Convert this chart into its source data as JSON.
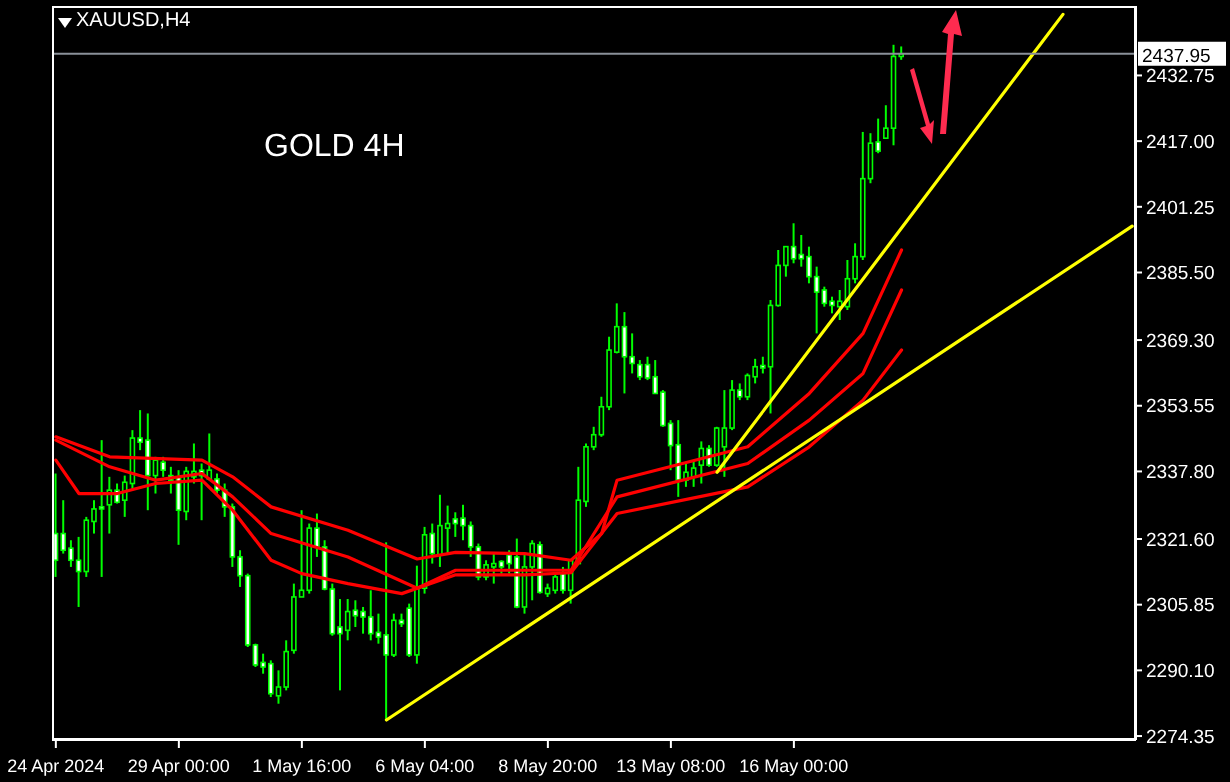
{
  "chart_data": {
    "type": "candlestick",
    "title": "XAUUSD,H4",
    "annotations": [
      "GOLD 4H"
    ],
    "categories": [
      "24 Apr 2024",
      null,
      null,
      null,
      null,
      null,
      null,
      null,
      null,
      null,
      null,
      null,
      null,
      null,
      null,
      null,
      "29 Apr 00:00",
      null,
      null,
      null,
      null,
      null,
      null,
      null,
      null,
      null,
      null,
      null,
      null,
      null,
      null,
      null,
      "1 May 16:00",
      null,
      null,
      null,
      null,
      null,
      null,
      null,
      null,
      null,
      null,
      null,
      null,
      null,
      null,
      null,
      "6 May 04:00",
      null,
      null,
      null,
      null,
      null,
      null,
      null,
      null,
      null,
      null,
      null,
      null,
      null,
      null,
      null,
      "8 May 20:00",
      null,
      null,
      null,
      null,
      null,
      null,
      null,
      null,
      null,
      null,
      null,
      null,
      null,
      null,
      null,
      "13 May 08:00",
      null,
      null,
      null,
      null,
      null,
      null,
      null,
      null,
      null,
      null,
      null,
      null,
      null,
      null,
      null,
      "16 May 00:00",
      null,
      null,
      null,
      null,
      null,
      null,
      null,
      null,
      null,
      null,
      null,
      null,
      null,
      null,
      null,
      null,
      null,
      null,
      null,
      null,
      null,
      null,
      null,
      null,
      null,
      null,
      null,
      null,
      null,
      null,
      null,
      null,
      null,
      null,
      null,
      null,
      null,
      null,
      null,
      null,
      null,
      null,
      null,
      null
    ],
    "ohlc": [
      [
        2322.9,
        2337.3,
        2312.5,
        2316.5
      ],
      [
        2322.9,
        2330.9,
        2318.1,
        2318.9
      ],
      [
        2319.4,
        2321.3,
        2314.9,
        2316.5
      ],
      [
        2316.5,
        2322.1,
        2305.3,
        2313.8
      ],
      [
        2313.8,
        2326.9,
        2312.5,
        2326.1
      ],
      [
        2325.8,
        2330.9,
        2322.9,
        2328.8
      ],
      [
        2329.3,
        2345.3,
        2312.5,
        2328.8
      ],
      [
        2329.8,
        2336.5,
        2322.9,
        2333.3
      ],
      [
        2333.3,
        2334.9,
        2330.1,
        2330.4
      ],
      [
        2330.9,
        2336.8,
        2326.9,
        2335.2
      ],
      [
        2334.9,
        2347.7,
        2333.3,
        2345.8
      ],
      [
        2345.8,
        2352.5,
        2342.9,
        2344.8
      ],
      [
        2345.3,
        2351.7,
        2328.5,
        2336.8
      ],
      [
        2336.8,
        2341.3,
        2332.5,
        2340.5
      ],
      [
        2340.0,
        2341.3,
        2336.5,
        2338.1
      ],
      [
        2336.8,
        2338.9,
        2332.5,
        2335.7
      ],
      [
        2336.5,
        2338.1,
        2320.2,
        2328.5
      ],
      [
        2328.2,
        2338.9,
        2326.1,
        2337.8
      ],
      [
        2336.5,
        2344.5,
        2334.9,
        2337.8
      ],
      [
        2338.1,
        2339.7,
        2326.1,
        2336.8
      ],
      [
        2336.0,
        2346.9,
        2335.7,
        2338.1
      ],
      [
        2336.0,
        2337.3,
        2332.5,
        2333.3
      ],
      [
        2333.3,
        2334.9,
        2326.9,
        2329.3
      ],
      [
        2329.3,
        2330.1,
        2314.9,
        2317.3
      ],
      [
        2317.3,
        2318.9,
        2310.1,
        2312.8
      ],
      [
        2312.8,
        2313.3,
        2295.7,
        2296.2
      ],
      [
        2296.2,
        2296.5,
        2290.9,
        2291.4
      ],
      [
        2292.0,
        2294.1,
        2289.3,
        2290.9
      ],
      [
        2291.7,
        2292.5,
        2283.7,
        2284.5
      ],
      [
        2284.0,
        2290.1,
        2282.1,
        2286.1
      ],
      [
        2286.1,
        2297.3,
        2285.3,
        2294.6
      ],
      [
        2294.9,
        2310.9,
        2294.1,
        2307.7
      ],
      [
        2307.7,
        2328.5,
        2307.7,
        2309.3
      ],
      [
        2309.3,
        2325.3,
        2308.5,
        2324.2
      ],
      [
        2324.2,
        2327.7,
        2317.3,
        2319.7
      ],
      [
        2319.7,
        2321.3,
        2309.3,
        2309.6
      ],
      [
        2309.6,
        2310.9,
        2298.4,
        2298.9
      ],
      [
        2300.5,
        2307.2,
        2285.3,
        2298.9
      ],
      [
        2299.7,
        2307.2,
        2297.3,
        2304.2
      ],
      [
        2304.5,
        2306.9,
        2300.5,
        2303.2
      ],
      [
        2304.2,
        2305.3,
        2298.9,
        2302.9
      ],
      [
        2302.9,
        2309.3,
        2297.3,
        2298.9
      ],
      [
        2299.2,
        2303.7,
        2296.5,
        2298.1
      ],
      [
        2298.6,
        2320.8,
        2278.1,
        2293.8
      ],
      [
        2293.8,
        2303.7,
        2293.3,
        2302.1
      ],
      [
        2302.1,
        2303.7,
        2300.5,
        2301.3
      ],
      [
        2305.0,
        2306.1,
        2293.3,
        2293.8
      ],
      [
        2293.8,
        2315.2,
        2291.7,
        2309.8
      ],
      [
        2309.8,
        2324.5,
        2308.5,
        2322.6
      ],
      [
        2322.9,
        2325.3,
        2315.7,
        2318.1
      ],
      [
        2317.8,
        2332.2,
        2314.9,
        2324.8
      ],
      [
        2324.2,
        2329.6,
        2317.8,
        2325.3
      ],
      [
        2326.4,
        2328.0,
        2322.1,
        2325.3
      ],
      [
        2326.6,
        2329.8,
        2321.3,
        2324.8
      ],
      [
        2324.8,
        2325.8,
        2317.3,
        2319.7
      ],
      [
        2319.7,
        2320.5,
        2311.7,
        2312.5
      ],
      [
        2312.5,
        2316.5,
        2311.7,
        2315.4
      ],
      [
        2314.9,
        2318.1,
        2310.9,
        2315.7
      ],
      [
        2316.2,
        2316.5,
        2313.3,
        2314.9
      ],
      [
        2317.8,
        2318.9,
        2313.3,
        2315.7
      ],
      [
        2317.3,
        2321.7,
        2305.0,
        2305.3
      ],
      [
        2305.3,
        2318.1,
        2303.7,
        2314.9
      ],
      [
        2314.9,
        2321.3,
        2306.9,
        2320.5
      ],
      [
        2320.2,
        2321.0,
        2308.5,
        2308.8
      ],
      [
        2308.5,
        2310.9,
        2307.7,
        2309.8
      ],
      [
        2309.3,
        2313.3,
        2308.5,
        2312.5
      ],
      [
        2313.3,
        2314.9,
        2308.5,
        2309.3
      ],
      [
        2309.3,
        2316.8,
        2306.1,
        2316.5
      ],
      [
        2315.7,
        2338.9,
        2315.7,
        2330.9
      ],
      [
        2330.6,
        2344.5,
        2329.3,
        2343.7
      ],
      [
        2343.7,
        2348.5,
        2342.9,
        2346.6
      ],
      [
        2346.6,
        2355.7,
        2346.1,
        2353.3
      ],
      [
        2353.3,
        2370.1,
        2352.5,
        2366.9
      ],
      [
        2366.4,
        2378.1,
        2366.1,
        2372.5
      ],
      [
        2372.5,
        2376.0,
        2356.5,
        2365.3
      ],
      [
        2365.3,
        2370.9,
        2361.3,
        2363.7
      ],
      [
        2363.4,
        2364.5,
        2359.7,
        2360.5
      ],
      [
        2363.4,
        2365.3,
        2359.7,
        2360.2
      ],
      [
        2360.5,
        2364.5,
        2356.5,
        2356.5
      ],
      [
        2356.8,
        2357.3,
        2348.5,
        2348.8
      ],
      [
        2349.3,
        2350.1,
        2338.1,
        2344.0
      ],
      [
        2344.2,
        2350.1,
        2331.7,
        2335.7
      ],
      [
        2335.7,
        2339.7,
        2334.1,
        2337.6
      ],
      [
        2336.5,
        2340.5,
        2334.1,
        2338.6
      ],
      [
        2339.3,
        2345.0,
        2334.9,
        2343.3
      ],
      [
        2343.3,
        2344.1,
        2338.9,
        2339.3
      ],
      [
        2339.3,
        2348.5,
        2338.9,
        2348.2
      ],
      [
        2343.7,
        2357.3,
        2336.5,
        2348.2
      ],
      [
        2348.2,
        2359.7,
        2347.7,
        2357.3
      ],
      [
        2357.3,
        2358.9,
        2354.9,
        2355.7
      ],
      [
        2355.7,
        2361.3,
        2354.9,
        2360.8
      ],
      [
        2360.5,
        2364.8,
        2358.9,
        2362.9
      ],
      [
        2363.2,
        2365.3,
        2361.3,
        2362.6
      ],
      [
        2362.9,
        2378.9,
        2351.7,
        2377.6
      ],
      [
        2377.6,
        2390.9,
        2377.3,
        2387.2
      ],
      [
        2387.2,
        2391.7,
        2384.5,
        2391.7
      ],
      [
        2391.7,
        2397.3,
        2387.7,
        2388.8
      ],
      [
        2389.8,
        2394.5,
        2386.9,
        2388.8
      ],
      [
        2389.3,
        2391.7,
        2382.9,
        2384.5
      ],
      [
        2384.5,
        2386.9,
        2370.9,
        2380.8
      ],
      [
        2381.3,
        2382.1,
        2377.3,
        2378.1
      ],
      [
        2378.6,
        2379.7,
        2375.7,
        2377.6
      ],
      [
        2377.3,
        2381.3,
        2374.1,
        2378.6
      ],
      [
        2377.3,
        2388.5,
        2376.5,
        2384.0
      ],
      [
        2384.0,
        2392.5,
        2382.9,
        2389.3
      ],
      [
        2389.3,
        2419.2,
        2388.5,
        2408.0
      ],
      [
        2408.0,
        2418.9,
        2406.9,
        2416.5
      ],
      [
        2416.8,
        2422.4,
        2414.1,
        2414.6
      ],
      [
        2417.7,
        2425.6,
        2417.6,
        2420.1
      ],
      [
        2420.1,
        2440.1,
        2416.0,
        2437.3
      ],
      [
        2437.3,
        2439.7,
        2436.5,
        2437.95
      ],
      null,
      null,
      null,
      null,
      null,
      null,
      null,
      null,
      null,
      null,
      null,
      null,
      null,
      null,
      null,
      null,
      null,
      null,
      null,
      null,
      null,
      null,
      null,
      null,
      null,
      null,
      null,
      null,
      null,
      null
    ],
    "color": "#00ff00",
    "colors": [
      "#ffffff",
      "#ffffff",
      "#ffffff",
      "#ffffff",
      "#000000",
      "#000000",
      "#ffffff",
      "#000000",
      "#ffffff",
      "#000000",
      "#000000",
      "#ffffff",
      "#ffffff",
      "#000000",
      "#ffffff",
      "#ffffff",
      "#ffffff",
      "#000000",
      "#000000",
      "#ffffff",
      "#000000",
      "#ffffff",
      "#ffffff",
      "#ffffff",
      "#ffffff",
      "#ffffff",
      "#ffffff",
      "#ffffff",
      "#ffffff",
      "#000000",
      "#000000",
      "#000000",
      "#000000",
      "#000000",
      "#ffffff",
      "#ffffff",
      "#ffffff",
      "#ffffff",
      "#000000",
      "#ffffff",
      "#ffffff",
      "#ffffff",
      "#ffffff",
      "#ffffff",
      "#000000",
      "#ffffff",
      "#ffffff",
      "#000000",
      "#000000",
      "#ffffff",
      "#000000",
      "#000000",
      "#ffffff",
      "#ffffff",
      "#ffffff",
      "#ffffff",
      "#000000",
      "#000000",
      "#ffffff",
      "#ffffff",
      "#ffffff",
      "#000000",
      "#000000",
      "#ffffff",
      "#000000",
      "#000000",
      "#ffffff",
      "#000000",
      "#000000",
      "#000000",
      "#000000",
      "#000000",
      "#000000",
      "#000000",
      "#ffffff",
      "#ffffff",
      "#ffffff",
      "#ffffff",
      "#ffffff",
      "#ffffff",
      "#ffffff",
      "#ffffff",
      "#000000",
      "#000000",
      "#000000",
      "#ffffff",
      "#000000",
      "#000000",
      "#000000",
      "#ffffff",
      "#000000",
      "#000000",
      "#ffffff",
      "#000000",
      "#000000",
      "#000000",
      "#ffffff",
      "#ffffff",
      "#ffffff",
      "#ffffff",
      "#ffffff",
      "#ffffff",
      "#000000",
      "#000000",
      "#000000",
      "#000000",
      "#000000",
      "#ffffff",
      "#000000",
      "#000000",
      "#000000",
      null,
      null,
      null,
      null,
      null,
      null,
      null,
      null,
      null,
      null,
      null,
      null,
      null,
      null,
      null,
      null,
      null,
      null,
      null,
      null,
      null,
      null,
      null,
      null,
      null,
      null,
      null,
      null,
      null,
      null
    ],
    "series": [
      {
        "type": "line",
        "color": "#ff0000",
        "values": [
          2346.1,
          null,
          null,
          null,
          null,
          null,
          null,
          2341.3,
          null,
          null,
          null,
          null,
          null,
          null,
          null,
          null,
          null,
          null,
          null,
          2340.5,
          null,
          null,
          null,
          2336.5,
          null,
          null,
          null,
          null,
          2329.3,
          null,
          null,
          null,
          null,
          null,
          null,
          null,
          null,
          null,
          2323.7,
          null,
          null,
          null,
          null,
          null,
          null,
          null,
          null,
          2316.8,
          null,
          null,
          null,
          null,
          2318.4,
          null,
          null,
          null,
          null,
          null,
          null,
          null,
          null,
          2318.1,
          null,
          null,
          null,
          null,
          null,
          2316.5,
          null,
          null,
          null,
          2322.9,
          null,
          2335.7,
          null,
          null,
          null,
          null,
          null,
          null,
          null,
          null,
          null,
          null,
          null,
          null,
          null,
          null,
          null,
          null,
          2343.7,
          null,
          null,
          null,
          null,
          null,
          null,
          null,
          2356.5,
          null,
          null,
          null,
          null,
          null,
          null,
          2370.9,
          null,
          null,
          null,
          null,
          2390.9,
          null,
          null,
          null,
          null,
          null,
          null,
          null,
          null,
          null,
          null,
          null,
          null,
          null,
          null,
          null,
          null,
          null,
          null,
          null,
          null,
          null,
          null,
          null,
          null,
          null,
          null,
          null,
          null,
          null,
          null
        ]
      },
      {
        "type": "line",
        "color": "#ff0000",
        "values": [
          2345.3,
          null,
          null,
          null,
          null,
          null,
          null,
          2338.9,
          null,
          null,
          null,
          null,
          null,
          2335.7,
          null,
          null,
          null,
          null,
          null,
          2337.3,
          null,
          null,
          null,
          2331.7,
          null,
          null,
          null,
          null,
          2322.9,
          null,
          null,
          null,
          null,
          null,
          null,
          null,
          null,
          null,
          2317.3,
          null,
          null,
          null,
          null,
          null,
          null,
          null,
          null,
          2309.8,
          null,
          null,
          null,
          null,
          2314.1,
          null,
          null,
          null,
          null,
          null,
          null,
          null,
          null,
          2314.1,
          null,
          null,
          null,
          null,
          null,
          2314.1,
          null,
          null,
          null,
          null,
          null,
          2331.7,
          null,
          null,
          null,
          null,
          null,
          null,
          null,
          null,
          null,
          null,
          null,
          null,
          null,
          null,
          null,
          null,
          2339.7,
          null,
          null,
          null,
          null,
          null,
          null,
          null,
          2350.1,
          null,
          null,
          null,
          null,
          null,
          null,
          2361.3,
          null,
          null,
          null,
          null,
          2381.3,
          null,
          null,
          null,
          null,
          null,
          null,
          null,
          null,
          null,
          null,
          null,
          null,
          null,
          null,
          null,
          null,
          null,
          null,
          null,
          null,
          null,
          null,
          null,
          null,
          null,
          null,
          null,
          null,
          null,
          null
        ]
      },
      {
        "type": "line",
        "color": "#ff0000",
        "values": [
          2340.5,
          null,
          null,
          2332.5,
          null,
          null,
          null,
          null,
          2332.5,
          null,
          null,
          null,
          null,
          2334.9,
          null,
          null,
          null,
          null,
          null,
          2335.7,
          null,
          null,
          null,
          2328.5,
          null,
          null,
          null,
          null,
          2316.5,
          null,
          null,
          null,
          2313.3,
          null,
          null,
          null,
          null,
          null,
          2310.9,
          null,
          null,
          null,
          null,
          null,
          null,
          2308.5,
          null,
          null,
          null,
          null,
          null,
          null,
          2313.0,
          null,
          null,
          null,
          null,
          null,
          null,
          null,
          null,
          2313.0,
          null,
          null,
          null,
          null,
          null,
          2313.5,
          null,
          null,
          null,
          null,
          null,
          2327.7,
          null,
          null,
          null,
          null,
          null,
          null,
          null,
          null,
          null,
          null,
          null,
          null,
          null,
          null,
          null,
          null,
          2334.1,
          null,
          null,
          null,
          null,
          null,
          null,
          null,
          2343.7,
          null,
          null,
          null,
          null,
          null,
          null,
          2354.9,
          null,
          null,
          null,
          null,
          2366.9,
          null,
          null,
          null,
          null,
          null,
          null,
          null,
          null,
          null,
          null,
          null,
          null,
          null,
          null,
          null,
          null,
          null,
          null,
          null,
          null,
          null,
          null,
          null,
          null,
          null,
          null,
          null,
          null,
          null,
          null
        ]
      },
      {
        "type": "line",
        "color": "#ffff00",
        "values": [
          null,
          null,
          null,
          null,
          null,
          null,
          null,
          null,
          null,
          null,
          null,
          null,
          null,
          null,
          null,
          null,
          null,
          null,
          null,
          null,
          null,
          null,
          null,
          null,
          null,
          null,
          null,
          null,
          null,
          null,
          null,
          null,
          null,
          null,
          null,
          null,
          null,
          null,
          null,
          null,
          null,
          null,
          null,
          2278.2,
          null,
          null,
          null,
          null,
          null,
          null,
          null,
          null,
          null,
          null,
          null,
          null,
          null,
          null,
          null,
          null,
          null,
          null,
          null,
          null,
          null,
          null,
          null,
          null,
          null,
          null,
          null,
          null,
          null,
          null,
          null,
          null,
          null,
          null,
          null,
          null,
          null,
          null,
          null,
          null,
          null,
          null,
          null,
          null,
          null,
          null,
          null,
          null,
          null,
          null,
          null,
          null,
          null,
          null,
          null,
          null,
          null,
          null,
          null,
          null,
          null,
          null,
          null,
          null,
          null,
          null,
          null,
          null,
          null,
          null,
          null,
          null,
          null,
          null,
          null,
          null,
          null,
          null,
          null,
          null,
          null,
          null,
          null,
          null,
          null,
          null,
          null,
          null,
          null,
          null,
          null,
          null,
          null,
          null,
          null,
          null,
          2396.6
        ]
      },
      {
        "type": "line",
        "color": "#ffff00",
        "values": [
          null,
          null,
          null,
          null,
          null,
          null,
          null,
          null,
          null,
          null,
          null,
          null,
          null,
          null,
          null,
          null,
          null,
          null,
          null,
          null,
          null,
          null,
          null,
          null,
          null,
          null,
          null,
          null,
          null,
          null,
          null,
          null,
          null,
          null,
          null,
          null,
          null,
          null,
          null,
          null,
          null,
          null,
          null,
          null,
          null,
          null,
          null,
          null,
          null,
          null,
          null,
          null,
          null,
          null,
          null,
          null,
          null,
          null,
          null,
          null,
          null,
          null,
          null,
          null,
          null,
          null,
          null,
          null,
          null,
          null,
          null,
          null,
          null,
          null,
          null,
          null,
          null,
          null,
          null,
          null,
          null,
          null,
          null,
          null,
          null,
          null,
          2337.6,
          null,
          null,
          null,
          null,
          null,
          null,
          null,
          null,
          null,
          null,
          null,
          null,
          null,
          null,
          null,
          null,
          null,
          null,
          null,
          null,
          null,
          null,
          null,
          null,
          null,
          null,
          null,
          null,
          null,
          null,
          null,
          null,
          null,
          null,
          null,
          null,
          null,
          null,
          null,
          null,
          null,
          null,
          null,
          null,
          2447.4,
          null,
          null,
          null,
          null,
          null,
          null,
          null,
          null,
          null
        ]
      }
    ],
    "ylim": [
      2273.4,
      2449.4
    ],
    "yticks": [
      {
        "value": 2274.35,
        "label": "2274.35"
      },
      {
        "value": 2290.1,
        "label": "2290.10"
      },
      {
        "value": 2305.85,
        "label": "2305.85"
      },
      {
        "value": 2321.6,
        "label": "2321.60"
      },
      {
        "value": 2337.8,
        "label": "2337.80"
      },
      {
        "value": 2353.55,
        "label": "2353.55"
      },
      {
        "value": 2369.3,
        "label": "2369.30"
      },
      {
        "value": 2385.5,
        "label": "2385.50"
      },
      {
        "value": 2401.25,
        "label": "2401.25"
      },
      {
        "value": 2417.0,
        "label": "2417.00"
      },
      {
        "value": 2432.75,
        "label": "2432.75"
      }
    ],
    "ref_lines": [
      {
        "axis": "y",
        "value": 2437.95,
        "label": "2437.95",
        "color": "#8a9099"
      }
    ]
  }
}
